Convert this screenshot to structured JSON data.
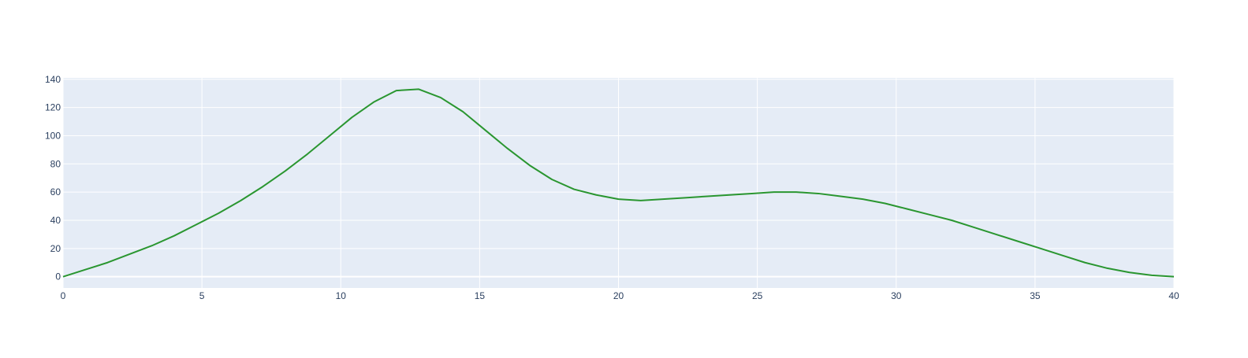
{
  "chart_data": {
    "type": "line",
    "title": "",
    "xlabel": "",
    "ylabel": "",
    "xlim": [
      0,
      40
    ],
    "ylim": [
      -8,
      141
    ],
    "x_ticks": [
      0,
      5,
      10,
      15,
      20,
      25,
      30,
      35,
      40
    ],
    "y_ticks": [
      0,
      20,
      40,
      60,
      80,
      100,
      120,
      140
    ],
    "grid": true,
    "plot_background": "#e5ecf6",
    "grid_color": "#ffffff",
    "series": [
      {
        "color": "#2a9630",
        "x": [
          0,
          0.8,
          1.6,
          2.4,
          3.2,
          4.0,
          4.8,
          5.6,
          6.4,
          7.2,
          8.0,
          8.8,
          9.6,
          10.4,
          11.2,
          12.0,
          12.8,
          13.6,
          14.4,
          15.2,
          16.0,
          16.8,
          17.6,
          18.4,
          19.2,
          20.0,
          20.8,
          21.6,
          22.4,
          23.2,
          24.0,
          24.8,
          25.6,
          26.4,
          27.2,
          28.0,
          28.8,
          29.6,
          30.4,
          31.2,
          32.0,
          32.8,
          33.6,
          34.4,
          35.2,
          36.0,
          36.8,
          37.6,
          38.4,
          39.2,
          40.0
        ],
        "y": [
          0,
          5,
          10,
          16,
          22,
          29,
          37,
          45,
          54,
          64,
          75,
          87,
          100,
          113,
          124,
          132,
          133,
          127,
          117,
          104,
          91,
          79,
          69,
          62,
          58,
          55,
          54,
          55,
          56,
          57,
          58,
          59,
          60,
          60,
          59,
          57,
          55,
          52,
          48,
          44,
          40,
          35,
          30,
          25,
          20,
          15,
          10,
          6,
          3,
          1,
          0
        ]
      }
    ]
  }
}
